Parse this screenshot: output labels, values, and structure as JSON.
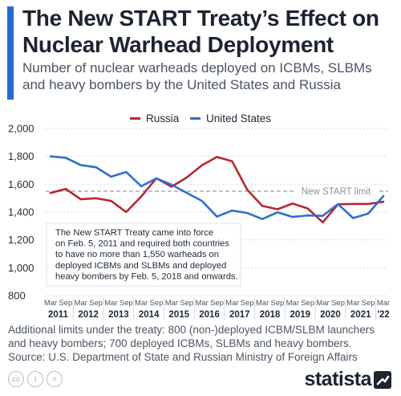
{
  "header": {
    "title": "The New START Treaty’s Effect on Nuclear Warhead Deployment",
    "subtitle": "Number of nuclear warheads deployed on ICBMs, SLBMs and heavy bombers by the United States and Russia"
  },
  "colors": {
    "russia": "#b5282d",
    "united_states": "#2f6fd0",
    "accent": "#1f6fd1",
    "limit_line": "#a8adb5"
  },
  "chart_data": {
    "type": "line",
    "x": [
      "Mar 2011",
      "Sep 2011",
      "Mar 2012",
      "Sep 2012",
      "Mar 2013",
      "Sep 2013",
      "Mar 2014",
      "Sep 2014",
      "Mar 2015",
      "Sep 2015",
      "Mar 2016",
      "Sep 2016",
      "Mar 2017",
      "Sep 2017",
      "Mar 2018",
      "Sep 2018",
      "Mar 2019",
      "Sep 2019",
      "Mar 2020",
      "Sep 2020",
      "Mar 2021",
      "Sep 2021",
      "Mar 2022"
    ],
    "x_tick_top": [
      "Mar",
      "Sep",
      "Mar",
      "Sep",
      "Mar",
      "Sep",
      "Mar",
      "Sep",
      "Mar",
      "Sep",
      "Mar",
      "Sep",
      "Mar",
      "Sep",
      "Mar",
      "Sep",
      "Mar",
      "Sep",
      "Mar",
      "Sep",
      "Mar",
      "Sep",
      "Mar"
    ],
    "year_labels": [
      "2011",
      "2012",
      "2013",
      "2014",
      "2015",
      "2016",
      "2017",
      "2018",
      "2019",
      "2020",
      "2021",
      "'22"
    ],
    "series": [
      {
        "name": "Russia",
        "values": [
          1537,
          1566,
          1492,
          1499,
          1480,
          1400,
          1512,
          1643,
          1582,
          1648,
          1735,
          1796,
          1765,
          1561,
          1444,
          1420,
          1461,
          1426,
          1326,
          1456,
          1458,
          1458,
          1474
        ]
      },
      {
        "name": "United States",
        "values": [
          1800,
          1790,
          1737,
          1722,
          1654,
          1688,
          1585,
          1642,
          1597,
          1538,
          1481,
          1367,
          1411,
          1393,
          1350,
          1398,
          1365,
          1376,
          1373,
          1457,
          1357,
          1389,
          1515
        ]
      }
    ],
    "reference_line": {
      "value": 1550,
      "label": "New START limit"
    },
    "annotation": "The New START Treaty came into force on Feb. 5, 2011 and required both countries to have no more than 1,550 warheads on deployed ICBMs and SLBMs and deployed heavy bombers by Feb. 5, 2018 and onwards.",
    "y_ticks": [
      "2,000",
      "1,800",
      "1,600",
      "1,400",
      "1,200",
      "1,000",
      "800"
    ],
    "ylim": [
      800,
      2000
    ],
    "grid": "horizontal dotted",
    "legend_position": "top-center"
  },
  "footer": {
    "note": "Additional limits under the treaty: 800 (non-)deployed ICBM/SLBM launchers and heavy bombers; 700 deployed ICBMs, SLBMs and heavy bombers.",
    "source": "Source: U.S. Department of State and Russian Ministry of Foreign Affairs",
    "license_icons": [
      "cc-icon",
      "by-icon",
      "equals-icon"
    ],
    "license_glyphs": [
      "cc",
      "i",
      "="
    ],
    "brand": "statista"
  }
}
